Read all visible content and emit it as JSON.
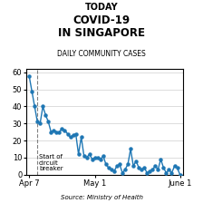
{
  "chart_data": {
    "type": "line",
    "title": "COVID-19\nIN SINGAPORE",
    "subtitle": "DAILY COMMUNITY CASES",
    "source": "Source: Ministry of Health",
    "annotations": [
      {
        "text": "TODAY"
      },
      {
        "text": "Start of\ncircuit\nbreaker",
        "x": 3
      }
    ],
    "categories": [
      "Apr 7",
      null,
      null,
      null,
      null,
      null,
      null,
      null,
      null,
      null,
      null,
      null,
      null,
      null,
      null,
      null,
      null,
      null,
      null,
      null,
      null,
      null,
      null,
      null,
      "May 1",
      null,
      null,
      null,
      null,
      null,
      null,
      null,
      null,
      null,
      null,
      null,
      null,
      null,
      null,
      null,
      null,
      null,
      null,
      null,
      null,
      null,
      null,
      null,
      null,
      null,
      null,
      null,
      null,
      null,
      null,
      "June 1"
    ],
    "values": [
      58,
      49,
      40,
      31,
      30,
      40,
      35,
      31,
      25,
      26,
      25,
      25,
      27,
      26,
      24,
      22,
      23,
      24,
      12,
      22,
      11,
      10,
      12,
      9,
      10,
      10,
      9,
      11,
      6,
      4,
      3,
      2,
      5,
      6,
      1,
      3,
      6,
      15,
      5,
      8,
      4,
      3,
      4,
      1,
      2,
      3,
      5,
      3,
      9,
      4,
      1,
      3,
      1,
      5,
      4,
      0
    ],
    "ylim": [
      0,
      62
    ],
    "yticks": [
      0,
      10,
      20,
      30,
      40,
      50,
      60
    ],
    "grid": true,
    "marker": "o",
    "line_style": "solid"
  }
}
